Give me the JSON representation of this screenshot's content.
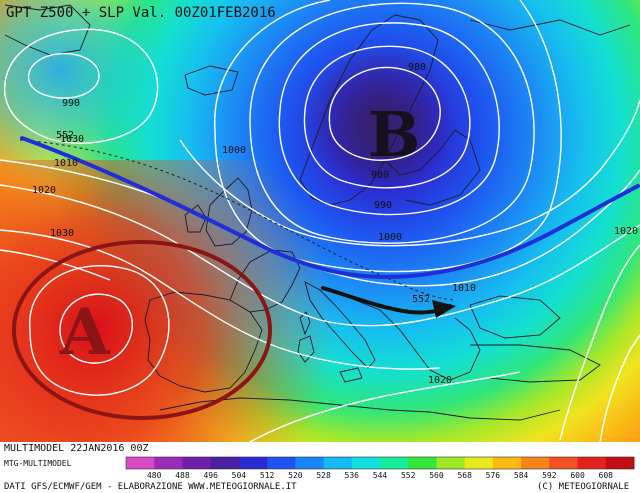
{
  "map": {
    "title": "GPT Z500 + SLP Val. 00Z01FEB2016",
    "high_label": "A",
    "low_label": "B",
    "high_color": "#8b1414",
    "low_color": "#16101e",
    "jet_color": "#1f2fd8",
    "isobar_labels": [
      {
        "id": "slp-990-west",
        "text": "990"
      },
      {
        "id": "slp-1030-west",
        "text": "1030"
      },
      {
        "id": "slp-1010-west",
        "text": "1010"
      },
      {
        "id": "slp-1020-west",
        "text": "1020"
      },
      {
        "id": "slp-1030-sw",
        "text": "1030"
      },
      {
        "id": "slp-1000-north",
        "text": "1000"
      },
      {
        "id": "slp-980-ne",
        "text": "980"
      },
      {
        "id": "slp-980-center",
        "text": "980"
      },
      {
        "id": "slp-990-center",
        "text": "990"
      },
      {
        "id": "slp-1000-center",
        "text": "1000"
      },
      {
        "id": "slp-1010-east",
        "text": "1010"
      },
      {
        "id": "slp-1020-east",
        "text": "1020"
      },
      {
        "id": "slp-1020-south",
        "text": "1020"
      }
    ],
    "z500_labels": [
      {
        "id": "z500-552-west",
        "text": "552"
      },
      {
        "id": "z500-552-balkans",
        "text": "552"
      }
    ]
  },
  "footer": {
    "run_label": "MULTIMODEL 22JAN2016 00Z",
    "model_label": "MTG-MULTIMODEL",
    "data_credit": "DATI GFS/ECMWF/GEM - ELABORAZIONE WWW.METEOGIORNALE.IT",
    "copyright": "(C) METEOGIORNALE"
  },
  "colorbar": {
    "ticks": [
      "480",
      "488",
      "496",
      "504",
      "512",
      "520",
      "528",
      "536",
      "544",
      "552",
      "560",
      "568",
      "576",
      "584",
      "592",
      "600",
      "608"
    ],
    "colors": [
      "#d84ac4",
      "#9a2cb8",
      "#6e1ea8",
      "#4a1fa0",
      "#2c2bd0",
      "#1f52f0",
      "#1a86f5",
      "#14b8f2",
      "#12e0e0",
      "#16ec9a",
      "#34e63c",
      "#9ee826",
      "#e8e81c",
      "#fbb914",
      "#f7841a",
      "#f25022",
      "#e4221c",
      "#bf0e14"
    ]
  }
}
